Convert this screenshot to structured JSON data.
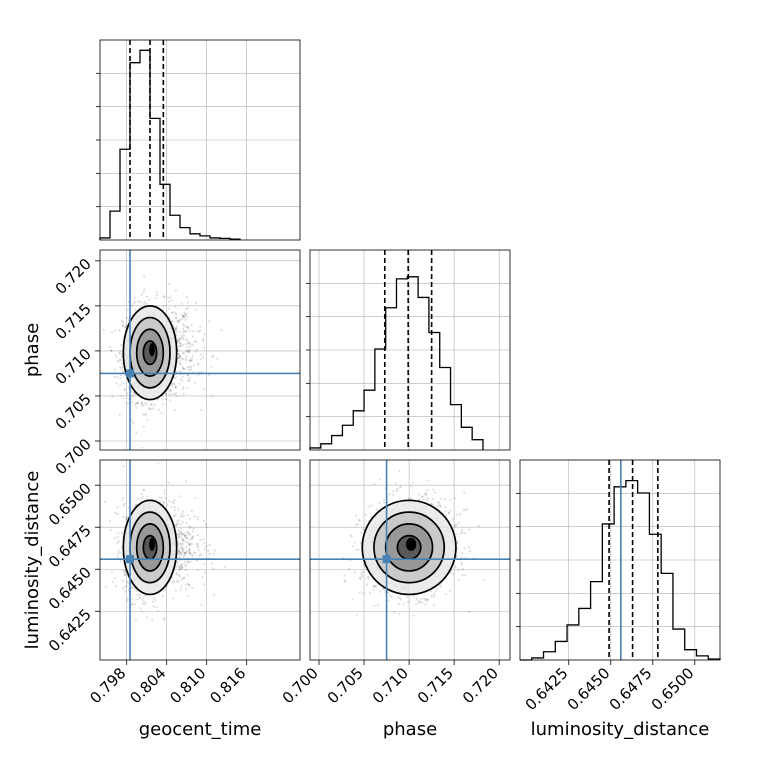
{
  "chart_data": {
    "type": "corner",
    "parameters": [
      "geocent_time",
      "phase",
      "luminosity_distance"
    ],
    "truths": {
      "geocent_time": 0.7985,
      "phase": 0.7075,
      "luminosity_distance": 0.6456
    },
    "quantiles": {
      "geocent_time": [
        0.7985,
        0.8015,
        0.8035
      ],
      "phase": [
        0.7073,
        0.7099,
        0.7125
      ],
      "luminosity_distance": [
        0.6449,
        0.6463,
        0.6478
      ]
    },
    "ranges": {
      "geocent_time": [
        0.794,
        0.824
      ],
      "phase": [
        0.699,
        0.7212
      ],
      "luminosity_distance": [
        0.6396,
        0.6515
      ]
    },
    "ticks": {
      "geocent_time": {
        "x": [
          "0.798",
          "0.804",
          "0.810",
          "0.816"
        ]
      },
      "phase": {
        "x": [
          "0.700",
          "0.705",
          "0.710",
          "0.715",
          "0.720"
        ],
        "y": [
          "0.700",
          "0.705",
          "0.710",
          "0.715",
          "0.720"
        ]
      },
      "luminosity_distance": {
        "x": [
          "0.6425",
          "0.6450",
          "0.6475",
          "0.6500"
        ],
        "y": [
          "0.6425",
          "0.6450",
          "0.6475",
          "0.6500"
        ]
      }
    },
    "histograms": {
      "geocent_time": {
        "edges": [
          0.794,
          0.7955,
          0.797,
          0.7985,
          0.8,
          0.8015,
          0.803,
          0.8045,
          0.806,
          0.8075,
          0.809,
          0.8105,
          0.812,
          0.8135,
          0.815
        ],
        "counts": [
          0.01,
          0.14,
          0.44,
          0.86,
          0.92,
          0.59,
          0.27,
          0.12,
          0.06,
          0.03,
          0.02,
          0.01,
          0.008,
          0.004
        ]
      },
      "phase": {
        "edges": [
          0.699,
          0.7002,
          0.7014,
          0.7026,
          0.7038,
          0.705,
          0.7062,
          0.7074,
          0.7086,
          0.7098,
          0.711,
          0.7122,
          0.7134,
          0.7146,
          0.7158,
          0.717,
          0.7182
        ],
        "counts": [
          0.01,
          0.03,
          0.07,
          0.12,
          0.19,
          0.29,
          0.49,
          0.69,
          0.83,
          0.84,
          0.74,
          0.57,
          0.4,
          0.22,
          0.11,
          0.05
        ]
      },
      "luminosity_distance": {
        "edges": [
          0.6396,
          0.6403,
          0.641,
          0.6417,
          0.6424,
          0.6431,
          0.6438,
          0.6445,
          0.6452,
          0.6459,
          0.6466,
          0.6473,
          0.648,
          0.6487,
          0.6494,
          0.6501,
          0.6508,
          0.6515
        ],
        "counts": [
          0.0,
          0.01,
          0.04,
          0.09,
          0.17,
          0.25,
          0.38,
          0.66,
          0.84,
          0.87,
          0.81,
          0.61,
          0.42,
          0.15,
          0.05,
          0.02,
          0.005
        ]
      }
    },
    "density_2d": {
      "phase_vs_geocent_time": {
        "center": [
          0.8015,
          0.7098
        ],
        "sigma": [
          0.002,
          0.0026
        ],
        "rho": 0.05
      },
      "luminosity_distance_vs_geocent_time": {
        "center": [
          0.8015,
          0.6463
        ],
        "sigma": [
          0.002,
          0.0014
        ],
        "rho": 0.05
      },
      "luminosity_distance_vs_phase": {
        "center": [
          0.71,
          0.6463
        ],
        "sigma": [
          0.0026,
          0.0014
        ],
        "rho": 0.1
      }
    },
    "contour_levels_sigma": [
      0.5,
      1.0,
      1.5,
      2.0
    ],
    "grid": true,
    "colors": {
      "truth": "#4682b4",
      "line": "#000000",
      "grid": "#b0b0b0"
    }
  }
}
